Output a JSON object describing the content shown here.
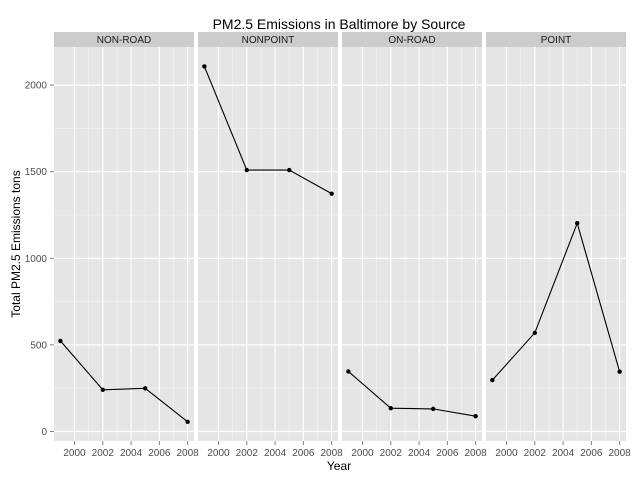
{
  "chart_data": {
    "type": "line",
    "title": "PM2.5 Emissions in Baltimore by Source",
    "xlabel": "Year",
    "ylabel": "Total PM2.5 Emissions tons",
    "facet_by": "type",
    "x": [
      1999,
      2002,
      2005,
      2008
    ],
    "x_ticks": [
      2000,
      2002,
      2004,
      2006,
      2008
    ],
    "y_ticks": [
      0,
      500,
      1000,
      1500,
      2000
    ],
    "xlim": [
      1998.55,
      2008.45
    ],
    "ylim": [
      -55,
      2220
    ],
    "grid": true,
    "colors": {
      "panel_bg": "#e5e5e5",
      "grid_major": "#ffffff",
      "grid_minor": "#f2f2f2",
      "strip_bg": "#cccccc",
      "line": "#000000",
      "tick": "#7f7f7f"
    },
    "panels": [
      {
        "name": "NON-ROAD",
        "values": [
          522.94,
          240.85,
          248.93,
          55.82
        ]
      },
      {
        "name": "NONPOINT",
        "values": [
          2107.63,
          1509.5,
          1509.5,
          1373.21
        ]
      },
      {
        "name": "ON-ROAD",
        "values": [
          346.82,
          134.31,
          130.43,
          88.28
        ]
      },
      {
        "name": "POINT",
        "values": [
          296.8,
          569.26,
          1202.49,
          344.98
        ]
      }
    ]
  }
}
